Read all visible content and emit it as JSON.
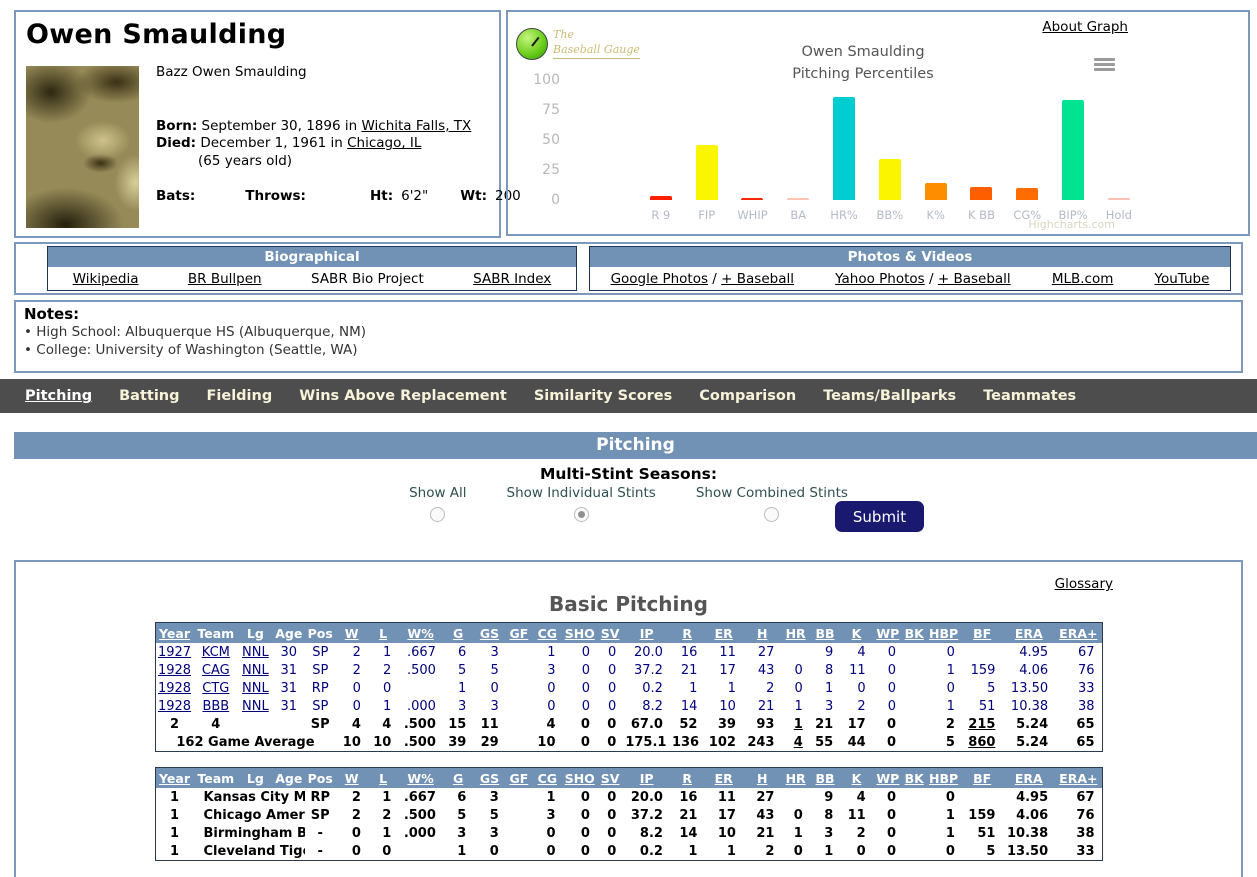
{
  "player": {
    "name": "Owen Smaulding",
    "full_name": "Bazz Owen Smaulding",
    "born_label": "Born:",
    "born_text": "September 30, 1896 in",
    "born_place": "Wichita Falls, TX",
    "died_label": "Died:",
    "died_text": "December 1, 1961 in",
    "died_place": "Chicago, IL",
    "age_note": "(65 years old)",
    "bats_label": "Bats:",
    "bats": "",
    "throws_label": "Throws:",
    "throws": "",
    "ht_label": "Ht:",
    "ht": "6'2\"",
    "wt_label": "Wt:",
    "wt": "200"
  },
  "chart": {
    "about_link": "About Graph",
    "title_line1": "Owen Smaulding",
    "title_line2": "Pitching Percentiles",
    "logo_line1": "The",
    "logo_line2": "Baseball Gauge",
    "watermark": "Highcharts.com"
  },
  "chart_data": {
    "type": "bar",
    "title": "Owen Smaulding Pitching Percentiles",
    "categories": [
      "R 9",
      "FIP",
      "WHIP",
      "BA",
      "HR%",
      "BB%",
      "K%",
      "K BB",
      "CG%",
      "BIP%",
      "Hold"
    ],
    "values": [
      3,
      46,
      2,
      1,
      86,
      34,
      14,
      11,
      10,
      83,
      1
    ],
    "colors": [
      "#ff1e00",
      "#fcf500",
      "#ff2600",
      "#ffc3b4",
      "#00cdd1",
      "#fcf500",
      "#ff8d00",
      "#ff5e00",
      "#ff6d00",
      "#00e391",
      "#ffc0b4"
    ],
    "xlabel": "",
    "ylabel": "",
    "ylim": [
      0,
      100
    ],
    "y_ticks": [
      "100",
      "75",
      "50",
      "25",
      "0"
    ],
    "grid": false,
    "legend": "none"
  },
  "links": {
    "bio": {
      "header": "Biographical",
      "items": [
        {
          "label": "Wikipedia",
          "u": true
        },
        {
          "label": "BR Bullpen",
          "u": true
        },
        {
          "label": "SABR Bio Project",
          "u": false
        },
        {
          "label": "SABR Index",
          "u": true
        }
      ]
    },
    "photos": {
      "header": "Photos & Videos",
      "items": [
        {
          "parts": [
            "Google Photos",
            "+ Baseball"
          ]
        },
        {
          "parts": [
            "Yahoo Photos",
            "+ Baseball"
          ]
        },
        {
          "parts": [
            "MLB.com"
          ]
        },
        {
          "parts": [
            "YouTube"
          ]
        }
      ]
    }
  },
  "notes": {
    "header": "Notes:",
    "items": [
      "High School: Albuquerque HS (Albuquerque, NM)",
      "College: University of Washington (Seattle, WA)"
    ]
  },
  "nav": {
    "items": [
      {
        "label": "Pitching",
        "active": true
      },
      {
        "label": "Batting",
        "active": false
      },
      {
        "label": "Fielding",
        "active": false
      },
      {
        "label": "Wins Above Replacement",
        "active": false
      },
      {
        "label": "Similarity Scores",
        "active": false
      },
      {
        "label": "Comparison",
        "active": false
      },
      {
        "label": "Teams/Ballparks",
        "active": false
      },
      {
        "label": "Teammates",
        "active": false
      }
    ]
  },
  "section": {
    "band": "Pitching"
  },
  "multi_stint": {
    "title": "Multi-Stint Seasons:",
    "options": [
      {
        "label": "Show All",
        "selected": false
      },
      {
        "label": "Show Individual Stints",
        "selected": true
      },
      {
        "label": "Show Combined Stints",
        "selected": false
      }
    ],
    "submit": "Submit"
  },
  "tables": {
    "title": "Basic Pitching",
    "glossary": "Glossary",
    "columns": [
      {
        "label": "Year",
        "u": true
      },
      {
        "label": "Team",
        "u": false
      },
      {
        "label": "Lg",
        "u": false
      },
      {
        "label": "Age",
        "u": false
      },
      {
        "label": "Pos",
        "u": false
      },
      {
        "label": "W",
        "u": true
      },
      {
        "label": "L",
        "u": true
      },
      {
        "label": "W%",
        "u": true
      },
      {
        "label": "G",
        "u": true
      },
      {
        "label": "GS",
        "u": true
      },
      {
        "label": "GF",
        "u": true
      },
      {
        "label": "CG",
        "u": true
      },
      {
        "label": "SHO",
        "u": true
      },
      {
        "label": "SV",
        "u": true
      },
      {
        "label": "IP",
        "u": true
      },
      {
        "label": "R",
        "u": true
      },
      {
        "label": "ER",
        "u": true
      },
      {
        "label": "H",
        "u": true
      },
      {
        "label": "HR",
        "u": true
      },
      {
        "label": "BB",
        "u": true
      },
      {
        "label": "K",
        "u": true
      },
      {
        "label": "WP",
        "u": true
      },
      {
        "label": "BK",
        "u": true
      },
      {
        "label": "HBP",
        "u": true
      },
      {
        "label": "BF",
        "u": true
      },
      {
        "label": "ERA",
        "u": true
      },
      {
        "label": "ERA+",
        "u": true
      }
    ],
    "season_table": {
      "rows": [
        {
          "type": "data",
          "cells": [
            {
              "t": "1927",
              "l": 1
            },
            {
              "t": "KCM",
              "l": 1
            },
            {
              "t": "NNL",
              "l": 1
            },
            "30",
            "SP",
            "2",
            "1",
            ".667",
            "6",
            "3",
            "",
            "1",
            "0",
            "0",
            "20.0",
            "16",
            "11",
            "27",
            "",
            "9",
            "4",
            "0",
            "",
            "0",
            "",
            "4.95",
            "67"
          ]
        },
        {
          "type": "data",
          "cells": [
            {
              "t": "1928",
              "l": 1
            },
            {
              "t": "CAG",
              "l": 1
            },
            {
              "t": "NNL",
              "l": 1
            },
            "31",
            "SP",
            "2",
            "2",
            ".500",
            "5",
            "5",
            "",
            "3",
            "0",
            "0",
            "37.2",
            "21",
            "17",
            "43",
            "0",
            "8",
            "11",
            "0",
            "",
            "1",
            "159",
            "4.06",
            "76"
          ]
        },
        {
          "type": "data",
          "cells": [
            {
              "t": "1928",
              "l": 1
            },
            {
              "t": "CTG",
              "l": 1
            },
            {
              "t": "NNL",
              "l": 1
            },
            "31",
            "RP",
            "0",
            "0",
            "",
            "1",
            "0",
            "",
            "0",
            "0",
            "0",
            "0.2",
            "1",
            "1",
            "2",
            "0",
            "1",
            "0",
            "0",
            "",
            "0",
            "5",
            "13.50",
            "33"
          ]
        },
        {
          "type": "data",
          "cells": [
            {
              "t": "1928",
              "l": 1
            },
            {
              "t": "BBB",
              "l": 1
            },
            {
              "t": "NNL",
              "l": 1
            },
            "31",
            "SP",
            "0",
            "1",
            ".000",
            "3",
            "3",
            "",
            "0",
            "0",
            "0",
            "8.2",
            "14",
            "10",
            "21",
            "1",
            "3",
            "2",
            "0",
            "",
            "1",
            "51",
            "10.38",
            "38"
          ]
        },
        {
          "type": "total",
          "cells": [
            "2",
            "4",
            "",
            "",
            "SP",
            "4",
            "4",
            ".500",
            "15",
            "11",
            "",
            "4",
            "0",
            "0",
            "67.0",
            "52",
            "39",
            "93",
            {
              "t": "1",
              "u": 1
            },
            "21",
            "17",
            "0",
            "",
            "2",
            {
              "t": "215",
              "u": 1
            },
            "5.24",
            "65"
          ]
        },
        {
          "type": "total",
          "cells": [
            {
              "t": "162 Game Average",
              "span": 5
            },
            "10",
            "10",
            ".500",
            "39",
            "29",
            "",
            "10",
            "0",
            "0",
            "175.1",
            "136",
            "102",
            "243",
            {
              "t": "4",
              "u": 1
            },
            "55",
            "44",
            "0",
            "",
            "5",
            {
              "t": "860",
              "u": 1
            },
            "5.24",
            "65"
          ]
        }
      ]
    },
    "team_table": {
      "rows": [
        {
          "type": "team",
          "cells": [
            "1",
            {
              "t": "Kansas City Mo",
              "span": 3,
              "left": 1
            },
            "RP",
            "2",
            "1",
            ".667",
            "6",
            "3",
            "",
            "1",
            "0",
            "0",
            "20.0",
            "16",
            "11",
            "27",
            "",
            "9",
            "4",
            "0",
            "",
            "0",
            "",
            "4.95",
            "67"
          ]
        },
        {
          "type": "team",
          "cells": [
            "1",
            {
              "t": "Chicago Ameri",
              "span": 3,
              "left": 1
            },
            "SP",
            "2",
            "2",
            ".500",
            "5",
            "5",
            "",
            "3",
            "0",
            "0",
            "37.2",
            "21",
            "17",
            "43",
            "0",
            "8",
            "11",
            "0",
            "",
            "1",
            "159",
            "4.06",
            "76"
          ]
        },
        {
          "type": "team",
          "cells": [
            "1",
            {
              "t": "Birmingham B",
              "span": 3,
              "left": 1
            },
            "-",
            "0",
            "1",
            ".000",
            "3",
            "3",
            "",
            "0",
            "0",
            "0",
            "8.2",
            "14",
            "10",
            "21",
            "1",
            "3",
            "2",
            "0",
            "",
            "1",
            "51",
            "10.38",
            "38"
          ]
        },
        {
          "type": "team",
          "cells": [
            "1",
            {
              "t": "Cleveland Tige",
              "span": 3,
              "left": 1
            },
            "-",
            "0",
            "0",
            "",
            "1",
            "0",
            "",
            "0",
            "0",
            "0",
            "0.2",
            "1",
            "1",
            "2",
            "0",
            "1",
            "0",
            "0",
            "",
            "0",
            "5",
            "13.50",
            "33"
          ]
        }
      ]
    }
  }
}
